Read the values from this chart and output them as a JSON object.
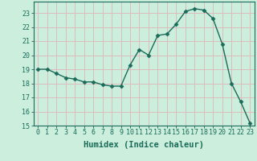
{
  "x": [
    0,
    1,
    2,
    3,
    4,
    5,
    6,
    7,
    8,
    9,
    10,
    11,
    12,
    13,
    14,
    15,
    16,
    17,
    18,
    19,
    20,
    21,
    22,
    23
  ],
  "y": [
    19.0,
    19.0,
    18.7,
    18.4,
    18.3,
    18.1,
    18.1,
    17.9,
    17.8,
    17.8,
    19.3,
    20.4,
    20.0,
    21.4,
    21.5,
    22.2,
    23.1,
    23.3,
    23.2,
    22.6,
    20.8,
    18.0,
    16.7,
    15.2
  ],
  "line_color": "#1a6b5a",
  "marker": "D",
  "markersize": 2.5,
  "linewidth": 1.0,
  "bg_color": "#cceedd",
  "grid_color": "#ddbbbb",
  "xlabel": "Humidex (Indice chaleur)",
  "xlim": [
    -0.5,
    23.5
  ],
  "ylim": [
    15,
    23.8
  ],
  "yticks": [
    15,
    16,
    17,
    18,
    19,
    20,
    21,
    22,
    23
  ],
  "xticks": [
    0,
    1,
    2,
    3,
    4,
    5,
    6,
    7,
    8,
    9,
    10,
    11,
    12,
    13,
    14,
    15,
    16,
    17,
    18,
    19,
    20,
    21,
    22,
    23
  ],
  "tick_fontsize": 6,
  "label_fontsize": 7.5,
  "tick_color": "#1a6b5a",
  "spine_color": "#1a6b5a"
}
